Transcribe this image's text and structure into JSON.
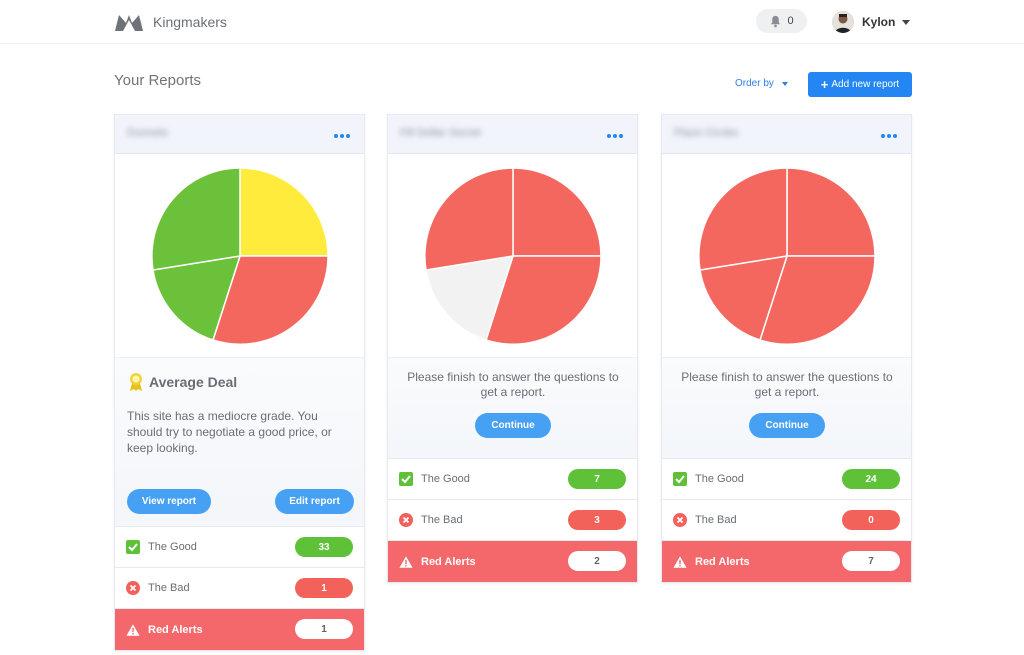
{
  "header": {
    "brand": "Kingmakers",
    "notifications": "0",
    "user": "Kylon"
  },
  "page": {
    "title": "Your Reports",
    "order_by": "Order by",
    "add_report": "Add new report"
  },
  "colors": {
    "green": "#6cc13b",
    "yellow": "#ffeb3b",
    "red": "#f4675f",
    "grey": "#f2f2f2",
    "accent": "#2386f2"
  },
  "cards": [
    {
      "name": "Dunnelo",
      "grade": "Average Deal",
      "description": "This site has a mediocre grade. You should try to negotiate a good price, or keep looking.",
      "view_report": "View report",
      "edit_report": "Edit report",
      "good_label": "The Good",
      "good_count": "33",
      "bad_label": "The Bad",
      "bad_count": "1",
      "alert_label": "Red Alerts",
      "alert_count": "1"
    },
    {
      "name": "Fill Dollar Secret",
      "message": "Please finish to answer the questions to get a report.",
      "continue": "Continue",
      "good_label": "The Good",
      "good_count": "7",
      "bad_label": "The Bad",
      "bad_count": "3",
      "alert_label": "Red Alerts",
      "alert_count": "2"
    },
    {
      "name": "Place Circles",
      "message": "Please finish to answer the questions to get a report.",
      "continue": "Continue",
      "good_label": "The Good",
      "good_count": "24",
      "bad_label": "The Bad",
      "bad_count": "0",
      "alert_label": "Red Alerts",
      "alert_count": "7"
    }
  ]
}
